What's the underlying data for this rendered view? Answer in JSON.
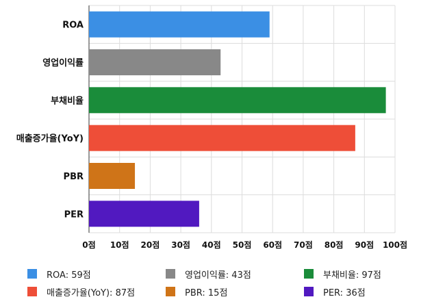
{
  "chart_data": {
    "type": "bar",
    "orientation": "horizontal",
    "categories": [
      "ROA",
      "영업이익률",
      "부채비율",
      "매출증가율(YoY)",
      "PBR",
      "PER"
    ],
    "values": [
      59,
      43,
      97,
      87,
      15,
      36
    ],
    "colors": [
      "#3b8fe4",
      "#888888",
      "#1a8c3a",
      "#ee4e38",
      "#cf7418",
      "#5119c0"
    ],
    "xlim": [
      0,
      100
    ],
    "x_ticks": [
      "0점",
      "10점",
      "20점",
      "30점",
      "40점",
      "50점",
      "60점",
      "70점",
      "80점",
      "90점",
      "100점"
    ],
    "grid": true,
    "legend_position": "bottom",
    "legend": [
      "ROA: 59점",
      "영업이익률: 43점",
      "부채비율: 97점",
      "매출증가율(YoY): 87점",
      "PBR: 15점",
      "PER: 36점"
    ]
  }
}
